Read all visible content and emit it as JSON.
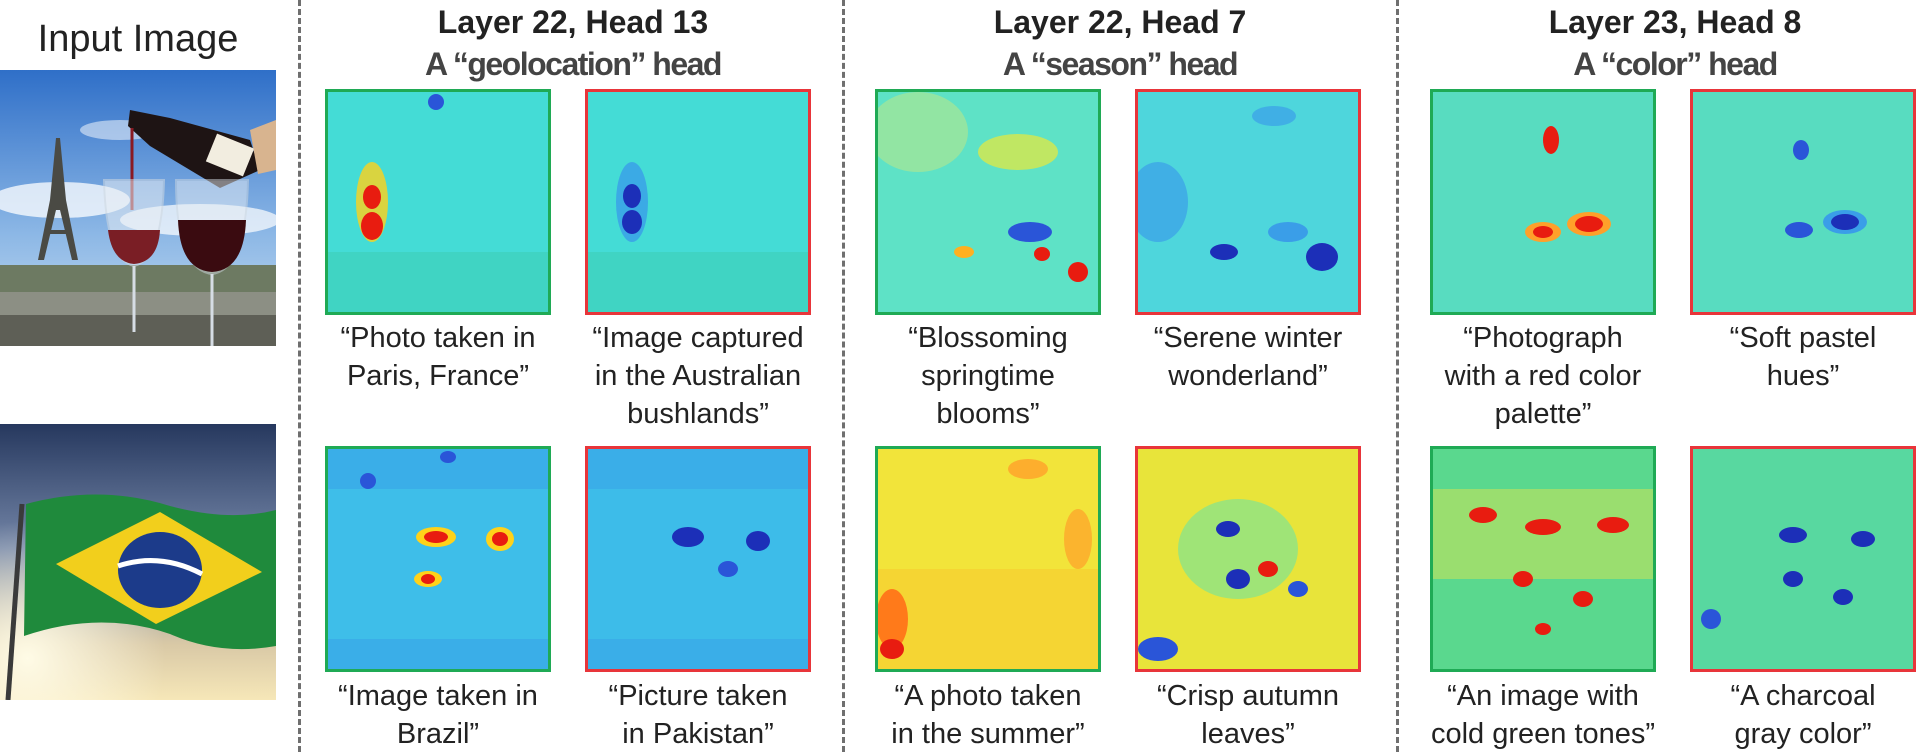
{
  "input": {
    "title": "Input Image"
  },
  "heads": [
    {
      "title": "Layer 22, Head 13",
      "subtitle": "A “geolocation” head",
      "rows": [
        {
          "positive": {
            "caption": "“Photo taken in\nParis, France”"
          },
          "negative": {
            "caption": "“Image captured\nin the Australian\nbushlands”"
          }
        },
        {
          "positive": {
            "caption": "“Image taken in\nBrazil”"
          },
          "negative": {
            "caption": "“Picture taken\nin Pakistan”"
          }
        }
      ]
    },
    {
      "title": "Layer 22, Head 7",
      "subtitle": "A “season” head",
      "rows": [
        {
          "positive": {
            "caption": "“Blossoming\nspringtime\nblooms”"
          },
          "negative": {
            "caption": "“Serene winter\nwonderland”"
          }
        },
        {
          "positive": {
            "caption": "“A photo taken\nin the summer”"
          },
          "negative": {
            "caption": "“Crisp autumn\nleaves”"
          }
        }
      ]
    },
    {
      "title": "Layer 23, Head 8",
      "subtitle": "A “color” head",
      "rows": [
        {
          "positive": {
            "caption": "“Photograph\nwith a red color\npalette”"
          },
          "negative": {
            "caption": "“Soft pastel\nhues”"
          }
        },
        {
          "positive": {
            "caption": "“An image with\ncold green tones”"
          },
          "negative": {
            "caption": "“A charcoal\ngray color”"
          }
        }
      ]
    }
  ],
  "colors": {
    "positive_border": "#1faa55",
    "negative_border": "#e8353a",
    "divider": "#6f6f6f"
  }
}
